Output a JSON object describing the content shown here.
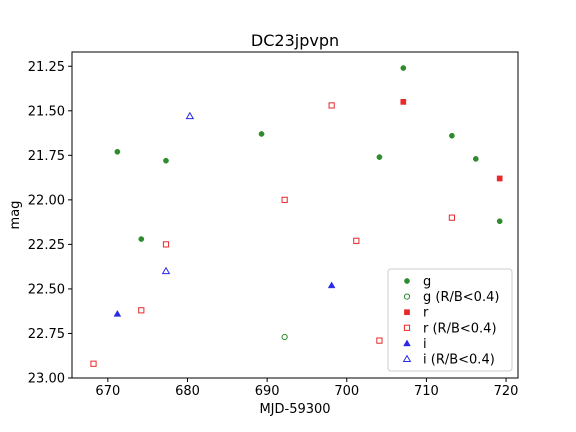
{
  "chart_data": {
    "type": "scatter",
    "title": "DC23jpvpn",
    "xlabel": "MJD-59300",
    "ylabel": "mag",
    "xlim": [
      665.5,
      721.5
    ],
    "ylim": [
      23.0,
      21.17
    ],
    "y_inverted": true,
    "x_ticks": [
      670,
      680,
      690,
      700,
      710,
      720
    ],
    "y_ticks": [
      21.25,
      21.5,
      21.75,
      22.0,
      22.25,
      22.5,
      22.75,
      23.0
    ],
    "y_tick_labels": [
      "21.25",
      "21.50",
      "21.75",
      "22.00",
      "22.25",
      "22.50",
      "22.75",
      "23.00"
    ],
    "grid": false,
    "legend_position": "lower right",
    "series": [
      {
        "name": "g",
        "color": "#2e8b2e",
        "marker": "circle",
        "filled": true,
        "points": [
          {
            "x": 671.2,
            "y": 21.73
          },
          {
            "x": 674.2,
            "y": 22.22
          },
          {
            "x": 677.3,
            "y": 21.78
          },
          {
            "x": 689.3,
            "y": 21.63
          },
          {
            "x": 704.1,
            "y": 21.76
          },
          {
            "x": 707.1,
            "y": 21.26
          },
          {
            "x": 713.2,
            "y": 21.64
          },
          {
            "x": 716.2,
            "y": 21.77
          },
          {
            "x": 719.2,
            "y": 22.12
          }
        ]
      },
      {
        "name": "g (R/B<0.4)",
        "color": "#2e8b2e",
        "marker": "circle",
        "filled": false,
        "points": [
          {
            "x": 692.2,
            "y": 22.77
          }
        ]
      },
      {
        "name": "r",
        "color": "#e8282a",
        "marker": "square",
        "filled": true,
        "points": [
          {
            "x": 707.1,
            "y": 21.45
          },
          {
            "x": 719.2,
            "y": 21.88
          }
        ]
      },
      {
        "name": "r (R/B<0.4)",
        "color": "#e8282a",
        "marker": "square",
        "filled": false,
        "points": [
          {
            "x": 668.2,
            "y": 22.92
          },
          {
            "x": 674.2,
            "y": 22.62
          },
          {
            "x": 677.3,
            "y": 22.25
          },
          {
            "x": 692.2,
            "y": 22.0
          },
          {
            "x": 698.1,
            "y": 21.47
          },
          {
            "x": 701.2,
            "y": 22.23
          },
          {
            "x": 704.1,
            "y": 22.79
          },
          {
            "x": 713.2,
            "y": 22.1
          }
        ]
      },
      {
        "name": "i",
        "color": "#2a2ae6",
        "marker": "triangle",
        "filled": true,
        "points": [
          {
            "x": 671.2,
            "y": 22.64
          },
          {
            "x": 698.1,
            "y": 22.48
          }
        ]
      },
      {
        "name": "i (R/B<0.4)",
        "color": "#2a2ae6",
        "marker": "triangle",
        "filled": false,
        "points": [
          {
            "x": 677.3,
            "y": 22.4
          },
          {
            "x": 680.3,
            "y": 21.53
          }
        ]
      }
    ]
  }
}
